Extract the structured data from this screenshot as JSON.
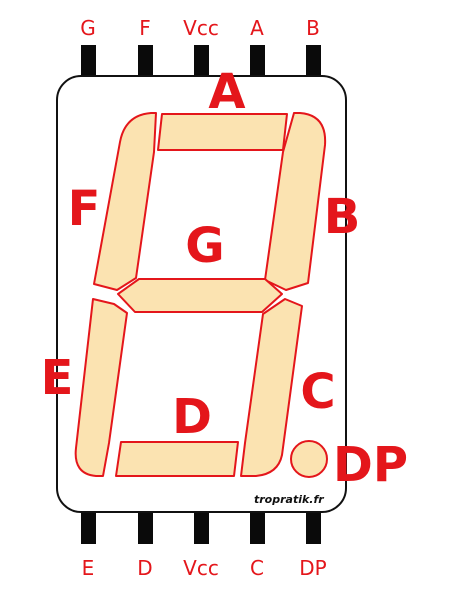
{
  "top_pins": [
    "G",
    "F",
    "Vcc",
    "A",
    "B"
  ],
  "bottom_pins": [
    "E",
    "D",
    "Vcc",
    "C",
    "DP"
  ],
  "segment_labels": {
    "a": "A",
    "b": "B",
    "c": "C",
    "d": "D",
    "e": "E",
    "f": "F",
    "g": "G",
    "dp": "DP"
  },
  "credit": "tropratik.fr",
  "colors": {
    "label": "#e4161b",
    "segment_fill": "#fbe3b1",
    "segment_stroke": "#e4161b",
    "pin": "#0a0a0a",
    "body_outline": "#111111"
  }
}
